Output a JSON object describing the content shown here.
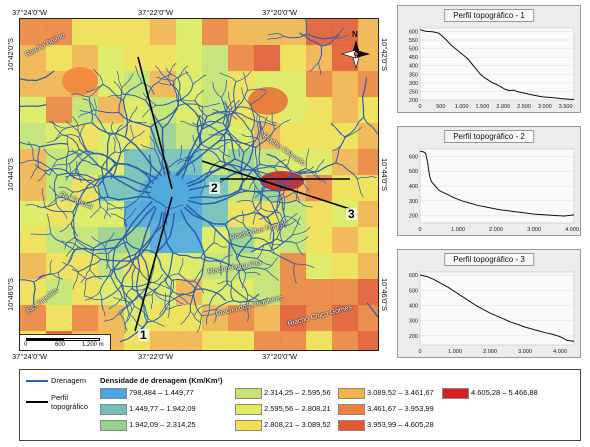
{
  "map": {
    "coords_top": [
      "37°24'0\"W",
      "37°22'0\"W",
      "37°20'0\"W"
    ],
    "coords_bottom": [
      "37°24'0\"W",
      "37°22'0\"W",
      "37°20'0\"W"
    ],
    "coords_left": [
      "10°42'0\"S",
      "10°44'0\"S",
      "10°46'0\"S"
    ],
    "coords_right": [
      "10°42'0\"S",
      "10°44'0\"S",
      "10°46'0\"S"
    ],
    "north_label": "N",
    "rivers": [
      "Riacho Boimo",
      "Riacho Cercado",
      "Rio Taboca",
      "Riacho dos Negros",
      "Riacho Água Fria",
      "Riacho dos Coqueiros",
      "Riacho Chico Gomes",
      "Rio Tapuisa"
    ],
    "profile_numbers": [
      "1",
      "2",
      "3"
    ],
    "scale": {
      "labels": [
        "0",
        "600",
        "1.200 m"
      ]
    }
  },
  "profiles": [
    {
      "title": "Perfil topográfico - 1",
      "y_ticks": [
        "600",
        "550",
        "500",
        "450",
        "400",
        "350",
        "300",
        "250",
        "200"
      ],
      "x_ticks": [
        "0",
        "500",
        "1.000",
        "1.500",
        "2.000",
        "2.500",
        "3.000",
        "3.500"
      ],
      "x_max": 3700,
      "y_min": 200,
      "y_max": 620,
      "points": [
        [
          0,
          610
        ],
        [
          150,
          600
        ],
        [
          300,
          598
        ],
        [
          450,
          590
        ],
        [
          550,
          570
        ],
        [
          650,
          545
        ],
        [
          750,
          520
        ],
        [
          850,
          500
        ],
        [
          950,
          480
        ],
        [
          1050,
          460
        ],
        [
          1150,
          440
        ],
        [
          1250,
          410
        ],
        [
          1350,
          380
        ],
        [
          1450,
          350
        ],
        [
          1550,
          330
        ],
        [
          1650,
          315
        ],
        [
          1750,
          300
        ],
        [
          1850,
          290
        ],
        [
          1950,
          275
        ],
        [
          2050,
          262
        ],
        [
          2150,
          255
        ],
        [
          2250,
          258
        ],
        [
          2350,
          248
        ],
        [
          2500,
          240
        ],
        [
          2650,
          232
        ],
        [
          2800,
          225
        ],
        [
          2950,
          218
        ],
        [
          3100,
          215
        ],
        [
          3250,
          212
        ],
        [
          3400,
          208
        ],
        [
          3550,
          205
        ],
        [
          3700,
          203
        ]
      ]
    },
    {
      "title": "Perfil topográfico - 2",
      "y_ticks": [
        "600",
        "500",
        "400",
        "300",
        "200"
      ],
      "x_ticks": [
        "0",
        "1.000",
        "2.000",
        "3.000",
        "4.000"
      ],
      "x_max": 4050,
      "y_min": 150,
      "y_max": 650,
      "points": [
        [
          0,
          635
        ],
        [
          100,
          630
        ],
        [
          150,
          620
        ],
        [
          200,
          560
        ],
        [
          250,
          470
        ],
        [
          300,
          430
        ],
        [
          400,
          400
        ],
        [
          500,
          370
        ],
        [
          700,
          345
        ],
        [
          900,
          320
        ],
        [
          1100,
          300
        ],
        [
          1300,
          285
        ],
        [
          1500,
          270
        ],
        [
          1800,
          255
        ],
        [
          2100,
          240
        ],
        [
          2400,
          230
        ],
        [
          2700,
          220
        ],
        [
          3000,
          210
        ],
        [
          3300,
          205
        ],
        [
          3600,
          200
        ],
        [
          3800,
          197
        ],
        [
          4050,
          205
        ]
      ]
    },
    {
      "title": "Perfil topográfico - 3",
      "y_ticks": [
        "600",
        "500",
        "400",
        "300",
        "200"
      ],
      "x_ticks": [
        "0",
        "1.000",
        "2.000",
        "3.000",
        "4.000"
      ],
      "x_max": 4400,
      "y_min": 140,
      "y_max": 620,
      "points": [
        [
          0,
          600
        ],
        [
          200,
          590
        ],
        [
          400,
          570
        ],
        [
          600,
          545
        ],
        [
          800,
          520
        ],
        [
          1000,
          490
        ],
        [
          1200,
          460
        ],
        [
          1400,
          430
        ],
        [
          1600,
          400
        ],
        [
          1800,
          375
        ],
        [
          2000,
          350
        ],
        [
          2200,
          330
        ],
        [
          2400,
          310
        ],
        [
          2600,
          290
        ],
        [
          2800,
          275
        ],
        [
          3000,
          258
        ],
        [
          3200,
          245
        ],
        [
          3400,
          232
        ],
        [
          3600,
          220
        ],
        [
          3800,
          210
        ],
        [
          4000,
          195
        ],
        [
          4200,
          170
        ],
        [
          4400,
          165
        ]
      ]
    }
  ],
  "legend": {
    "drainage_label": "Drenagem",
    "profile_label": "Perfil topográfico",
    "density_title": "Densidade de drenagem (Km/Km²)",
    "classes": [
      {
        "label": "798,484 – 1.449,77",
        "color": "#4aa6de"
      },
      {
        "label": "1.449,77 – 1.942,09",
        "color": "#6fc0b9"
      },
      {
        "label": "1.942,09 – 2.314,25",
        "color": "#96d18e"
      },
      {
        "label": "2.314,25 – 2.595,56",
        "color": "#c4e46e"
      },
      {
        "label": "2.595,56 – 2.808,21",
        "color": "#e2ec5a"
      },
      {
        "label": "2.808,21 – 3.089,52",
        "color": "#f4e04e"
      },
      {
        "label": "3.089,52 – 3.461,67",
        "color": "#f6b24a"
      },
      {
        "label": "3.461,67 – 3.953,99",
        "color": "#f0803a"
      },
      {
        "label": "3.953,99 – 4.605,28",
        "color": "#e8562e"
      },
      {
        "label": "4.605,28 – 5.466,88",
        "color": "#d61f1f"
      }
    ],
    "drainage_color": "#2d5fb0",
    "profile_color": "#000000"
  }
}
